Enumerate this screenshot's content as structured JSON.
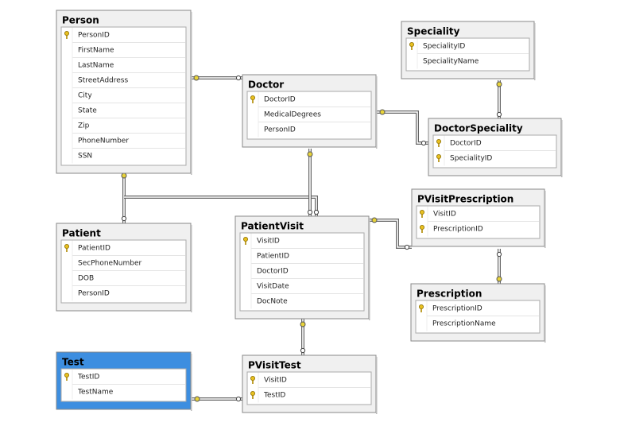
{
  "tables": [
    {
      "name": "Person",
      "columns": [
        {
          "name": "PersonID",
          "key": true
        },
        {
          "name": "FirstName",
          "key": false
        },
        {
          "name": "LastName",
          "key": false
        },
        {
          "name": "StreetAddress",
          "key": false
        },
        {
          "name": "City",
          "key": false
        },
        {
          "name": "State",
          "key": false
        },
        {
          "name": "Zip",
          "key": false
        },
        {
          "name": "PhoneNumber",
          "key": false
        },
        {
          "name": "SSN",
          "key": false
        }
      ]
    },
    {
      "name": "Doctor",
      "columns": [
        {
          "name": "DoctorID",
          "key": true
        },
        {
          "name": "MedicalDegrees",
          "key": false
        },
        {
          "name": "PersonID",
          "key": false
        }
      ]
    },
    {
      "name": "Speciality",
      "columns": [
        {
          "name": "SpecialityID",
          "key": true
        },
        {
          "name": "SpecialityName",
          "key": false
        }
      ]
    },
    {
      "name": "DoctorSpeciality",
      "columns": [
        {
          "name": "DoctorID",
          "key": true
        },
        {
          "name": "SpecialityID",
          "key": true
        }
      ]
    },
    {
      "name": "PVisitPrescription",
      "columns": [
        {
          "name": "VisitID",
          "key": true
        },
        {
          "name": "PrescriptionID",
          "key": true
        }
      ]
    },
    {
      "name": "Prescription",
      "columns": [
        {
          "name": "PrescriptionID",
          "key": true
        },
        {
          "name": "PrescriptionName",
          "key": false
        }
      ]
    },
    {
      "name": "PatientVisit",
      "columns": [
        {
          "name": "VisitID",
          "key": true
        },
        {
          "name": "PatientID",
          "key": false
        },
        {
          "name": "DoctorID",
          "key": false
        },
        {
          "name": "VisitDate",
          "key": false
        },
        {
          "name": "DocNote",
          "key": false
        }
      ]
    },
    {
      "name": "Patient",
      "columns": [
        {
          "name": "PatientID",
          "key": true
        },
        {
          "name": "SecPhoneNumber",
          "key": false
        },
        {
          "name": "DOB",
          "key": false
        },
        {
          "name": "PersonID",
          "key": false
        }
      ]
    },
    {
      "name": "Test",
      "selected": true,
      "columns": [
        {
          "name": "TestID",
          "key": true
        },
        {
          "name": "TestName",
          "key": false
        }
      ]
    },
    {
      "name": "PVisitTest",
      "columns": [
        {
          "name": "VisitID",
          "key": true
        },
        {
          "name": "TestID",
          "key": true
        }
      ]
    }
  ]
}
